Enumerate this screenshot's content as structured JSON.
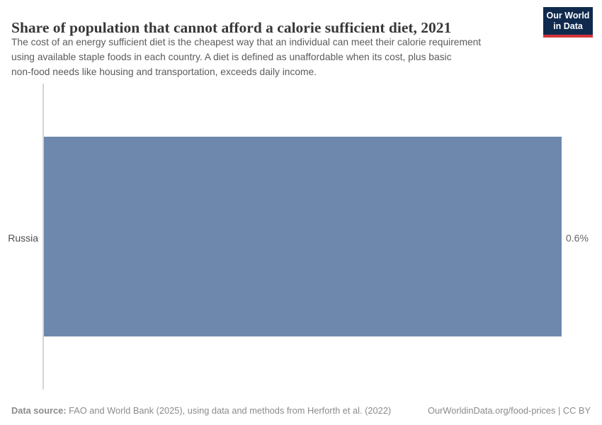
{
  "header": {
    "title": "Share of population that cannot afford a calorie sufficient diet, 2021",
    "subtitle_lines": [
      "The cost of an energy sufficient diet is the cheapest way that an individual can meet their calorie requirement",
      "using available staple foods in each country. A diet is defined as unaffordable when its cost, plus basic",
      "non-food needs like housing and transportation, exceeds daily income."
    ],
    "logo": {
      "line1": "Our World",
      "line2": "in Data",
      "bg_color": "#102a4e",
      "stripe_color": "#d1353b"
    }
  },
  "chart_data": {
    "type": "bar",
    "orientation": "horizontal",
    "title": "Share of population that cannot afford a calorie sufficient diet, 2021",
    "categories": [
      "Russia"
    ],
    "values": [
      0.6
    ],
    "value_labels": [
      "0.6%"
    ],
    "unit": "%",
    "xlim": [
      0,
      0.6
    ],
    "grid": false,
    "legend": false,
    "bar_color": "#6e88ad",
    "axis_color": "#d5d5d5"
  },
  "footer": {
    "source_label": "Data source:",
    "source_text": " FAO and World Bank (2025), using data and methods from Herforth et al. (2022)",
    "license_text": "OurWorldinData.org/food-prices | CC BY"
  }
}
